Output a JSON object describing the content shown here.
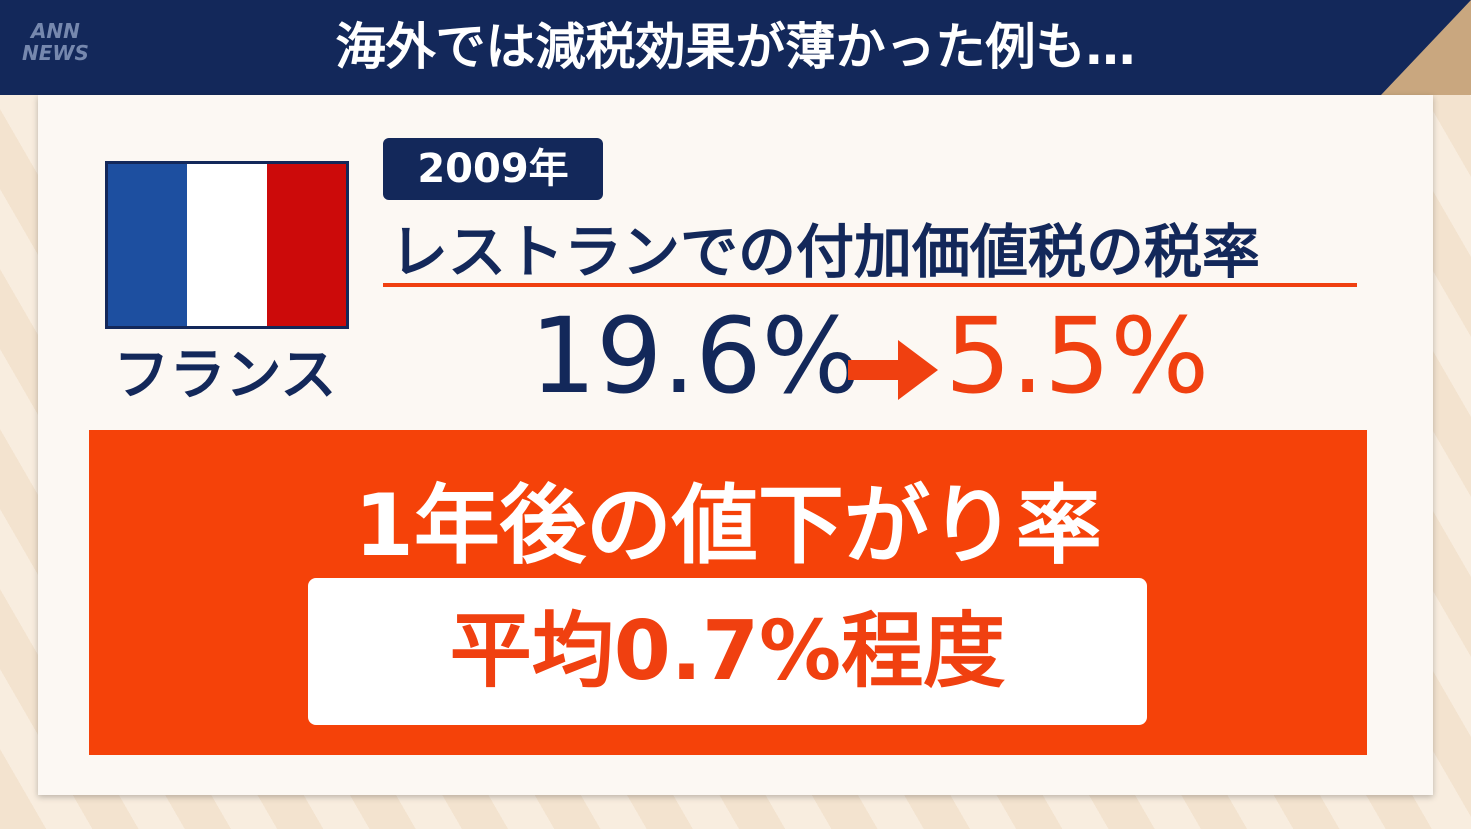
{
  "header": {
    "title": "海外では減税効果が薄かった例も…"
  },
  "logo": {
    "line1": "ANN",
    "line2": "NEWS"
  },
  "country": {
    "name": "フランス"
  },
  "rate": {
    "year": "2009年",
    "subject": "レストランでの付加価値税の税率",
    "before": "19.6%",
    "after": "5.5%"
  },
  "result": {
    "heading": "1年後の値下がり率",
    "value": "平均0.7%程度"
  }
}
